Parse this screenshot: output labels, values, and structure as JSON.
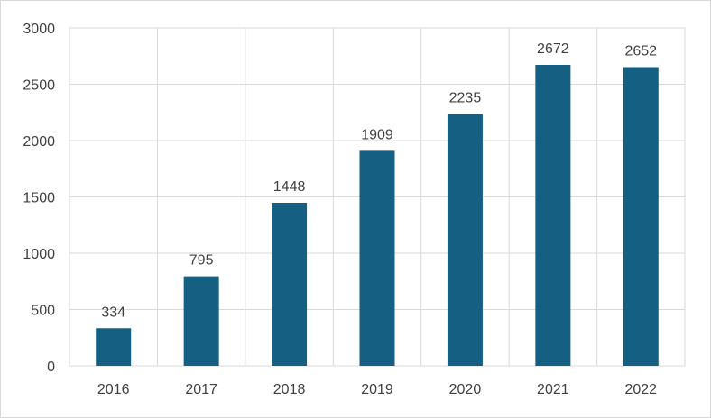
{
  "chart_data": {
    "type": "bar",
    "categories": [
      "2016",
      "2017",
      "2018",
      "2019",
      "2020",
      "2021",
      "2022"
    ],
    "values": [
      334,
      795,
      1448,
      1909,
      2235,
      2672,
      2652
    ],
    "data_labels": [
      "334",
      "795",
      "1448",
      "1909",
      "2235",
      "2672",
      "2652"
    ],
    "title": "",
    "xlabel": "",
    "ylabel": "",
    "ylim": [
      0,
      3000
    ],
    "yticks": [
      0,
      500,
      1000,
      1500,
      2000,
      2500,
      3000
    ],
    "ytick_labels": [
      "0",
      "500",
      "1000",
      "1500",
      "2000",
      "2500",
      "3000"
    ],
    "grid": "both",
    "legend": "none",
    "colors": {
      "bar": "#156082",
      "grid": "#d9d9d9",
      "text": "#404040"
    }
  }
}
